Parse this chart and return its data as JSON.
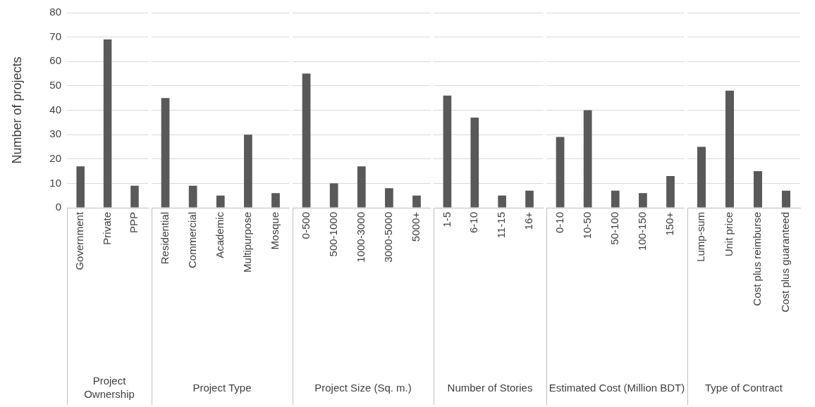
{
  "chart_data": [
    {
      "type": "bar",
      "ylabel": "Number of projects",
      "xlabel": "Project Ownership",
      "categories": [
        "Government",
        "Private",
        "PPP"
      ],
      "values": [
        17,
        69,
        9
      ],
      "color": "#595959",
      "ylim": [
        0,
        80
      ],
      "yticks": [
        0,
        10,
        20,
        30,
        40,
        50,
        60,
        70,
        80
      ],
      "grid": "y"
    },
    {
      "type": "bar",
      "xlabel": "Project Type",
      "categories": [
        "Residential",
        "Commercial",
        "Academic",
        "Multipurpose",
        "Mosque"
      ],
      "values": [
        45,
        9,
        5,
        30,
        6
      ],
      "color": "#595959",
      "ylim": [
        0,
        80
      ],
      "yticks": [
        0,
        10,
        20,
        30,
        40,
        50,
        60,
        70,
        80
      ],
      "grid": "y",
      "tick_labels": "x"
    },
    {
      "type": "bar",
      "xlabel": "Project Size (Sq. m.)",
      "categories": [
        "0-500",
        "500-1000",
        "1000-3000",
        "3000-5000",
        "5000+"
      ],
      "values": [
        55,
        10,
        17,
        8,
        5
      ],
      "color": "#595959",
      "ylim": [
        0,
        80
      ],
      "yticks": [
        0,
        10,
        20,
        30,
        40,
        50,
        60,
        70,
        80
      ],
      "grid": "y",
      "tick_labels": "x"
    },
    {
      "type": "bar",
      "xlabel": "Number of Stories",
      "categories": [
        "1-5",
        "6-10",
        "11-15",
        "16+"
      ],
      "values": [
        46,
        37,
        5,
        7
      ],
      "color": "#595959",
      "ylim": [
        0,
        80
      ],
      "yticks": [
        0,
        10,
        20,
        30,
        40,
        50,
        60,
        70,
        80
      ],
      "grid": "y",
      "tick_labels": "x"
    },
    {
      "type": "bar",
      "xlabel": "Estimated Cost (Million BDT)",
      "categories": [
        "0-10",
        "10-50",
        "50-100",
        "100-150",
        "150+"
      ],
      "values": [
        29,
        40,
        7,
        6,
        13
      ],
      "color": "#595959",
      "ylim": [
        0,
        80
      ],
      "yticks": [
        0,
        10,
        20,
        30,
        40,
        50,
        60,
        70,
        80
      ],
      "grid": "y",
      "tick_labels": "x"
    },
    {
      "type": "bar",
      "xlabel": "Type of Contract",
      "categories": [
        "Lump-sum",
        "Unit price",
        "Cost plus reimburse",
        "Cost plus guaranteed"
      ],
      "values": [
        25,
        48,
        15,
        7
      ],
      "color": "#595959",
      "ylim": [
        0,
        80
      ],
      "yticks": [
        0,
        10,
        20,
        30,
        40,
        50,
        60,
        70,
        80
      ],
      "grid": "y",
      "tick_labels": "x"
    }
  ]
}
